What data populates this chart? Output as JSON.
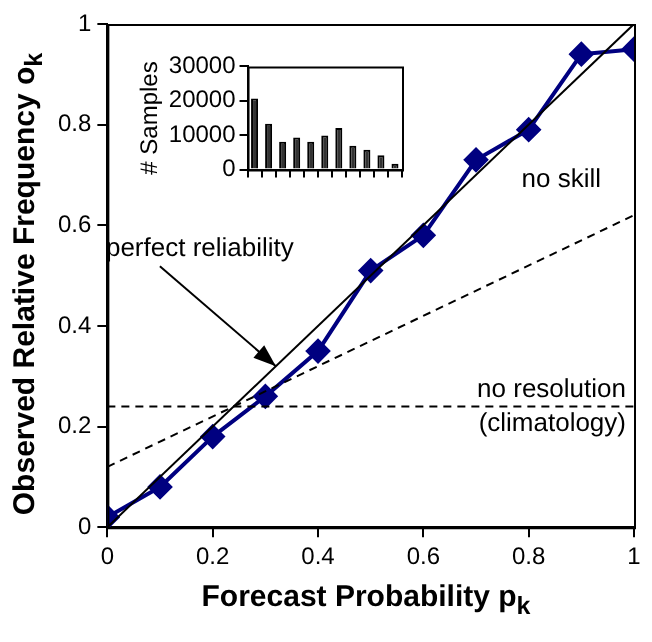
{
  "chart_data": [
    {
      "type": "line",
      "xlabel": "Forecast Probability p$_{k}$",
      "ylabel": "Observed Relative Frequency  o$_{k}$",
      "xlim": [
        0,
        1
      ],
      "ylim": [
        0,
        1
      ],
      "xticks": [
        0,
        0.2,
        0.4,
        0.6,
        0.8,
        1
      ],
      "yticks": [
        0,
        0.2,
        0.4,
        0.6,
        0.8,
        1
      ],
      "grid": false,
      "legend": false,
      "series": [
        {
          "color": "#000000",
          "x": [
            0,
            1
          ],
          "values": [
            0,
            1
          ],
          "line_style": "solid",
          "marker": "none"
        },
        {
          "color": "#000000",
          "x": [
            0,
            1
          ],
          "values": [
            0.12,
            0.62
          ],
          "line_style": "dashed",
          "marker": "none"
        },
        {
          "color": "#000080",
          "x": [
            0,
            0.1,
            0.2,
            0.3,
            0.4,
            0.5,
            0.6,
            0.7,
            0.8,
            0.9,
            1
          ],
          "values": [
            0.02,
            0.08,
            0.18,
            0.26,
            0.35,
            0.51,
            0.58,
            0.73,
            0.79,
            0.94,
            0.95
          ],
          "line_style": "solid",
          "marker": "diamond"
        }
      ],
      "ref_lines": [
        {
          "axis": "y",
          "value": 0.24,
          "label": "no resolution (climatology)",
          "line_style": "dashed",
          "color": "#000000"
        }
      ],
      "annotations": [
        {
          "text": "perfect reliability",
          "x": 0.32,
          "y": 0.32
        },
        {
          "text": "no skill",
          "x": 0.9,
          "y": 0.57
        }
      ]
    },
    {
      "type": "bar",
      "ylabel": "# Samples",
      "categories": [
        null,
        null,
        null,
        null,
        null,
        null,
        null,
        null,
        null,
        null,
        null
      ],
      "values": [
        20700,
        13300,
        8100,
        9300,
        8100,
        9900,
        12100,
        6900,
        5800,
        4200,
        1700
      ],
      "color": "#333333",
      "ylim": [
        0,
        30000
      ],
      "yticks": [
        0,
        10000,
        20000,
        30000
      ],
      "tick_labels": "y",
      "grid": false,
      "legend": false
    }
  ]
}
